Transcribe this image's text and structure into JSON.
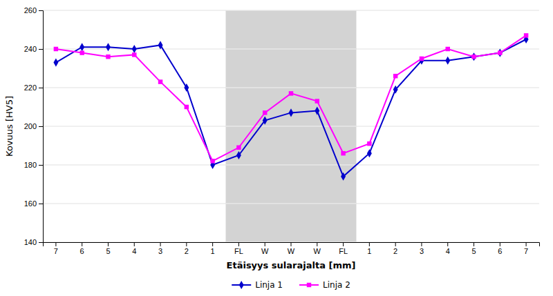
{
  "chart_data": {
    "type": "line",
    "categories": [
      "7",
      "6",
      "5",
      "4",
      "3",
      "2",
      "1",
      "FL",
      "W",
      "W",
      "W",
      "FL",
      "1",
      "2",
      "3",
      "4",
      "5",
      "6",
      "7"
    ],
    "series": [
      {
        "name": "Linja 1",
        "color": "#0000CD",
        "marker": "diamond",
        "values": [
          233,
          241,
          241,
          240,
          242,
          220,
          180,
          185,
          203,
          207,
          208,
          174,
          186,
          219,
          234,
          234,
          236,
          238,
          245
        ]
      },
      {
        "name": "Linja 2",
        "color": "#FF00FF",
        "marker": "square",
        "values": [
          240,
          238,
          236,
          237,
          223,
          210,
          182,
          189,
          207,
          217,
          213,
          186,
          191,
          226,
          235,
          240,
          236,
          238,
          247
        ]
      }
    ],
    "xlabel": "Etäisyys sularajalta [mm]",
    "ylabel": "Kovuus [HV5]",
    "ylim": [
      140,
      260
    ],
    "yticks": [
      140,
      160,
      180,
      200,
      220,
      240,
      260
    ],
    "grid": true,
    "legend": "bottom",
    "shade": {
      "from": 7,
      "to": 11,
      "color": "#d3d3d3"
    }
  }
}
